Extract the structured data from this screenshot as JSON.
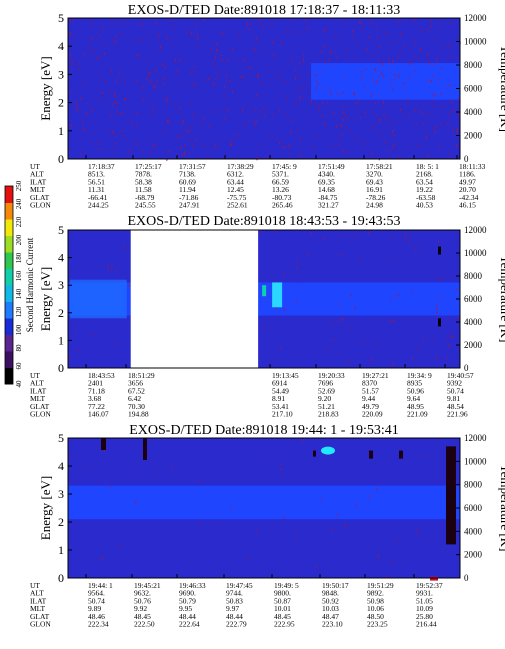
{
  "colors": {
    "background": "#2a2acd",
    "band": "#1f45ff",
    "noise": "#b0143a",
    "white": "#ffffff"
  },
  "colorbar": {
    "label": "Second Harmonic Current",
    "ticks": [
      "40",
      "60",
      "80",
      "100",
      "120",
      "140",
      "160",
      "180",
      "200",
      "220",
      "240",
      "250"
    ],
    "colors": [
      "#000000",
      "#3b1060",
      "#5a2590",
      "#1a2bd8",
      "#1f7bff",
      "#12b8e8",
      "#0fd0a8",
      "#2ec850",
      "#9ede22",
      "#f2e80a",
      "#f58a0a",
      "#e31010"
    ]
  },
  "chart_data": [
    {
      "type": "heatmap",
      "title": "EXOS-D/TED   Date:891018   17:18:37 - 18:11:33",
      "ylabel": "Energy [eV]",
      "y2label": "Temperature [K]",
      "ylim": [
        0,
        5
      ],
      "y2lim": [
        0,
        12000
      ],
      "yticks": [
        "0",
        "1",
        "2",
        "3",
        "4",
        "5"
      ],
      "y2ticks": [
        "0",
        "2000",
        "4000",
        "6000",
        "8000",
        "10000",
        "12000"
      ],
      "row_labels": [
        "UT",
        "ALT",
        "ILAT",
        "MLT",
        "GLAT",
        "GLON"
      ],
      "columns": [
        [
          "17:18:37",
          "8513.",
          "56.51",
          "11.31",
          "-66.41",
          "244.25"
        ],
        [
          "17:25:17",
          "7878.",
          "58.38",
          "11.58",
          "-68.79",
          "245.55"
        ],
        [
          "17:31:57",
          "7138.",
          "60.69",
          "11.94",
          "-71.86",
          "247.91"
        ],
        [
          "17:38:29",
          "6312.",
          "63.44",
          "12.45",
          "-75.75",
          "252.61"
        ],
        [
          "17:45: 9",
          "5371.",
          "66.59",
          "13.26",
          "-80.73",
          "265.46"
        ],
        [
          "17:51:49",
          "4340.",
          "69.35",
          "14.68",
          "-84.75",
          "321.27"
        ],
        [
          "17:58:21",
          "3270.",
          "69.43",
          "16.91",
          "-78.26",
          "24.98"
        ],
        [
          "18: 5: 1",
          "2168.",
          "63.54",
          "19.22",
          "-63.58",
          "40.53"
        ],
        [
          "18:11:33",
          "1186.",
          "49.97",
          "20.70",
          "-42.34",
          "46.15"
        ]
      ],
      "band": {
        "start_fraction": 0.62,
        "energy_range": [
          2.1,
          3.4
        ]
      }
    },
    {
      "type": "heatmap",
      "title": "EXOS-D/TED   Date:891018   18:43:53 - 19:43:53",
      "ylabel": "Energy [eV]",
      "y2label": "Temperature [K]",
      "ylim": [
        0,
        5
      ],
      "y2lim": [
        0,
        12000
      ],
      "yticks": [
        "0",
        "1",
        "2",
        "3",
        "4",
        "5"
      ],
      "y2ticks": [
        "0",
        "2000",
        "4000",
        "6000",
        "8000",
        "10000",
        "12000"
      ],
      "row_labels": [
        "UT",
        "ALT",
        "ILAT",
        "MLT",
        "GLAT",
        "GLON"
      ],
      "columns": [
        [
          "18:43:53",
          "2401",
          "71.18",
          "3.68",
          "77.22",
          "146.07"
        ],
        [
          "18:51:29",
          "3656",
          "67.52",
          "6.42",
          "70.30",
          "194.88"
        ],
        [
          "19:13:45",
          "6914",
          "54.49",
          "8.91",
          "53.41",
          "217.10"
        ],
        [
          "19:20:33",
          "7696",
          "52.69",
          "9.20",
          "51.21",
          "218.83"
        ],
        [
          "19:27:21",
          "8370",
          "51.57",
          "9.44",
          "49.79",
          "220.09"
        ],
        [
          "19:34: 9",
          "8935",
          "50.96",
          "9.64",
          "48.95",
          "221.09"
        ],
        [
          "19:40:57",
          "9392",
          "50.74",
          "9.81",
          "48.54",
          "221.96"
        ]
      ],
      "data_gap_fraction": [
        0.16,
        0.485
      ],
      "band": {
        "energy_range": [
          1.9,
          3.1
        ]
      }
    },
    {
      "type": "heatmap",
      "title": "EXOS-D/TED   Date:891018   19:44: 1 - 19:53:41",
      "ylabel": "Energy [eV]",
      "y2label": "Temperature [K]",
      "ylim": [
        0,
        5
      ],
      "y2lim": [
        0,
        12000
      ],
      "yticks": [
        "0",
        "1",
        "2",
        "3",
        "4",
        "5"
      ],
      "y2ticks": [
        "0",
        "2000",
        "4000",
        "6000",
        "8000",
        "10000",
        "12000"
      ],
      "row_labels": [
        "UT",
        "ALT",
        "ILAT",
        "MLT",
        "GLAT",
        "GLON"
      ],
      "columns": [
        [
          "19:44: 1",
          "9564.",
          "50.74",
          "9.89",
          "48.46",
          "222.34"
        ],
        [
          "19:45:21",
          "9632.",
          "50.76",
          "9.92",
          "48.45",
          "222.50"
        ],
        [
          "19:46:33",
          "9690.",
          "50.79",
          "9.95",
          "48.44",
          "222.64"
        ],
        [
          "19:47:45",
          "9744.",
          "50.83",
          "9.97",
          "48.44",
          "222.79"
        ],
        [
          "19:49: 5",
          "9800.",
          "50.87",
          "10.01",
          "48.45",
          "222.95"
        ],
        [
          "19:50:17",
          "9848.",
          "50.92",
          "10.03",
          "48.47",
          "223.10"
        ],
        [
          "19:51:29",
          "9892.",
          "50.98",
          "10.06",
          "48.50",
          "223.25"
        ],
        [
          "19:52:37",
          "9931.",
          "51.05",
          "10.09",
          "25.80",
          "216.44"
        ]
      ],
      "band": {
        "energy_range": [
          2.1,
          3.3
        ]
      }
    }
  ]
}
